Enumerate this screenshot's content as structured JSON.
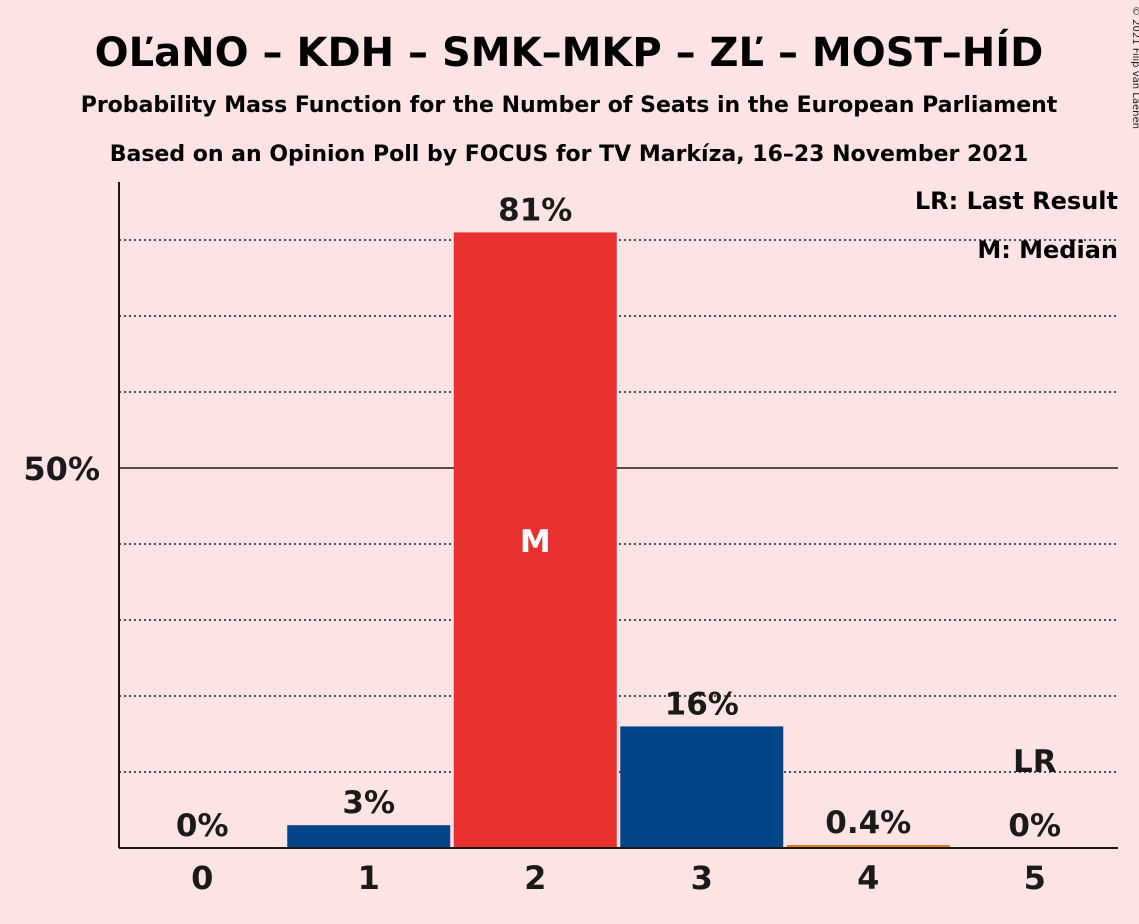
{
  "title": "OĽaNO – KDH – SMK–MKP – ZĽ – MOST–HÍD",
  "subtitle1": "Probability Mass Function for the Number of Seats in the European Parliament",
  "subtitle2": "Based on an Opinion Poll by FOCUS for TV Markíza, 16–23 November 2021",
  "copyright": "© 2021 Filip van Laenen",
  "legend": {
    "last_result": "LR: Last Result",
    "median": "M: Median"
  },
  "colors": {
    "background": "#FDE3E3",
    "blue": "#034589",
    "red": "#E8312F",
    "orange": "#E07B20",
    "axis": "#1a1a1a"
  },
  "chart_data": {
    "type": "bar",
    "categories": [
      "0",
      "1",
      "2",
      "3",
      "4",
      "5"
    ],
    "values": [
      0,
      3,
      81,
      16,
      0.4,
      0
    ],
    "value_labels": [
      "0%",
      "3%",
      "81%",
      "16%",
      "0.4%",
      "0%"
    ],
    "bar_colors": [
      "blue",
      "blue",
      "red",
      "blue",
      "orange",
      "blue"
    ],
    "ylim": [
      0,
      88
    ],
    "y_ticks": [
      {
        "value": 50,
        "label": "50%"
      }
    ],
    "gridlines": [
      10,
      20,
      30,
      40,
      60,
      70,
      80
    ],
    "median_index": 2,
    "median_label": "M",
    "last_result_index": 5,
    "last_result_label": "LR",
    "legend_position": "top-right"
  }
}
